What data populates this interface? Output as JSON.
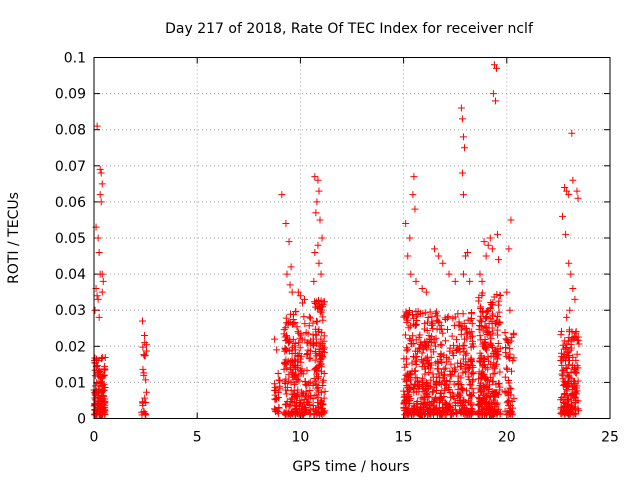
{
  "chart_data": {
    "type": "scatter",
    "title": "Day 217 of 2018, Rate Of TEC Index for receiver nclf",
    "xlabel": "GPS time / hours",
    "ylabel": "ROTI / TECUs",
    "xlim": [
      0,
      25
    ],
    "ylim": [
      0,
      0.1
    ],
    "x_ticks": [
      "0",
      "5",
      "10",
      "15",
      "20",
      "25"
    ],
    "y_ticks": [
      "0",
      "0.01",
      "0.02",
      "0.03",
      "0.04",
      "0.05",
      "0.06",
      "0.07",
      "0.08",
      "0.09",
      "0.1"
    ],
    "grid": true,
    "marker": "+",
    "marker_color": "#ff0000",
    "series": [
      {
        "name": "nclf",
        "clusters": [
          {
            "x_range": [
              0.0,
              0.55
            ],
            "dense_max": 0.017,
            "count": 140,
            "outliers": [
              [
                0.15,
                0.081
              ],
              [
                0.3,
                0.069
              ],
              [
                0.35,
                0.068
              ],
              [
                0.4,
                0.065
              ],
              [
                0.3,
                0.062
              ],
              [
                0.35,
                0.06
              ],
              [
                0.1,
                0.053
              ],
              [
                0.2,
                0.05
              ],
              [
                0.25,
                0.046
              ],
              [
                0.3,
                0.04
              ],
              [
                0.4,
                0.04
              ],
              [
                0.1,
                0.036
              ],
              [
                0.15,
                0.034
              ],
              [
                0.2,
                0.033
              ],
              [
                0.45,
                0.038
              ],
              [
                0.4,
                0.035
              ],
              [
                0.05,
                0.03
              ],
              [
                0.25,
                0.028
              ]
            ]
          },
          {
            "x_range": [
              2.3,
              2.55
            ],
            "dense_max": 0.024,
            "count": 25,
            "outliers": [
              [
                2.35,
                0.027
              ],
              [
                2.45,
                0.023
              ]
            ]
          },
          {
            "x_range": [
              8.7,
              9.05
            ],
            "dense_max": 0.013,
            "count": 25,
            "outliers": [
              [
                8.75,
                0.022
              ],
              [
                8.85,
                0.019
              ],
              [
                9.1,
                0.062
              ]
            ]
          },
          {
            "x_range": [
              9.2,
              10.5
            ],
            "dense_max": 0.03,
            "count": 230,
            "outliers": [
              [
                9.3,
                0.054
              ],
              [
                9.45,
                0.049
              ],
              [
                9.55,
                0.042
              ],
              [
                9.35,
                0.04
              ],
              [
                9.5,
                0.037
              ],
              [
                9.6,
                0.035
              ],
              [
                9.9,
                0.035
              ],
              [
                10.0,
                0.034
              ],
              [
                10.1,
                0.032
              ],
              [
                10.2,
                0.033
              ]
            ]
          },
          {
            "x_range": [
              10.6,
              11.2
            ],
            "dense_max": 0.033,
            "count": 130,
            "outliers": [
              [
                10.7,
                0.067
              ],
              [
                10.85,
                0.066
              ],
              [
                10.9,
                0.063
              ],
              [
                10.8,
                0.06
              ],
              [
                10.75,
                0.057
              ],
              [
                10.95,
                0.055
              ],
              [
                11.05,
                0.05
              ],
              [
                10.85,
                0.048
              ],
              [
                10.7,
                0.046
              ],
              [
                10.9,
                0.043
              ],
              [
                11.0,
                0.04
              ],
              [
                10.65,
                0.038
              ]
            ]
          },
          {
            "x_range": [
              15.0,
              16.3
            ],
            "dense_max": 0.03,
            "count": 260,
            "outliers": [
              [
                15.1,
                0.054
              ],
              [
                15.3,
                0.05
              ],
              [
                15.5,
                0.067
              ],
              [
                15.45,
                0.062
              ],
              [
                15.55,
                0.058
              ],
              [
                15.2,
                0.045
              ],
              [
                15.35,
                0.04
              ],
              [
                15.6,
                0.038
              ],
              [
                15.9,
                0.036
              ],
              [
                16.1,
                0.035
              ]
            ]
          },
          {
            "x_range": [
              16.3,
              18.4
            ],
            "dense_max": 0.03,
            "count": 330,
            "outliers": [
              [
                17.8,
                0.086
              ],
              [
                17.85,
                0.083
              ],
              [
                17.9,
                0.078
              ],
              [
                17.95,
                0.075
              ],
              [
                17.85,
                0.068
              ],
              [
                17.9,
                0.062
              ],
              [
                16.5,
                0.047
              ],
              [
                16.7,
                0.045
              ],
              [
                16.9,
                0.043
              ],
              [
                17.2,
                0.04
              ],
              [
                17.5,
                0.038
              ],
              [
                17.9,
                0.04
              ],
              [
                18.0,
                0.045
              ],
              [
                18.1,
                0.046
              ],
              [
                18.2,
                0.038
              ]
            ]
          },
          {
            "x_range": [
              18.6,
              19.7
            ],
            "dense_max": 0.035,
            "count": 280,
            "outliers": [
              [
                19.4,
                0.098
              ],
              [
                19.5,
                0.097
              ],
              [
                19.35,
                0.09
              ],
              [
                19.45,
                0.088
              ],
              [
                19.2,
                0.05
              ],
              [
                19.3,
                0.047
              ],
              [
                18.9,
                0.049
              ],
              [
                19.1,
                0.048
              ],
              [
                19.0,
                0.045
              ],
              [
                19.55,
                0.051
              ],
              [
                19.6,
                0.044
              ],
              [
                18.7,
                0.04
              ],
              [
                18.8,
                0.038
              ]
            ]
          },
          {
            "x_range": [
              19.9,
              20.35
            ],
            "dense_max": 0.025,
            "count": 55,
            "outliers": [
              [
                20.2,
                0.055
              ],
              [
                20.1,
                0.047
              ],
              [
                20.0,
                0.035
              ],
              [
                20.15,
                0.03
              ]
            ]
          },
          {
            "x_range": [
              22.6,
              23.5
            ],
            "dense_max": 0.025,
            "count": 170,
            "outliers": [
              [
                22.8,
                0.064
              ],
              [
                22.9,
                0.063
              ],
              [
                23.0,
                0.062
              ],
              [
                23.15,
                0.079
              ],
              [
                23.2,
                0.066
              ],
              [
                23.4,
                0.063
              ],
              [
                23.45,
                0.061
              ],
              [
                22.7,
                0.056
              ],
              [
                22.85,
                0.051
              ],
              [
                23.0,
                0.043
              ],
              [
                23.1,
                0.04
              ],
              [
                23.2,
                0.036
              ],
              [
                23.3,
                0.033
              ],
              [
                23.05,
                0.03
              ],
              [
                22.9,
                0.028
              ]
            ]
          }
        ]
      }
    ]
  }
}
